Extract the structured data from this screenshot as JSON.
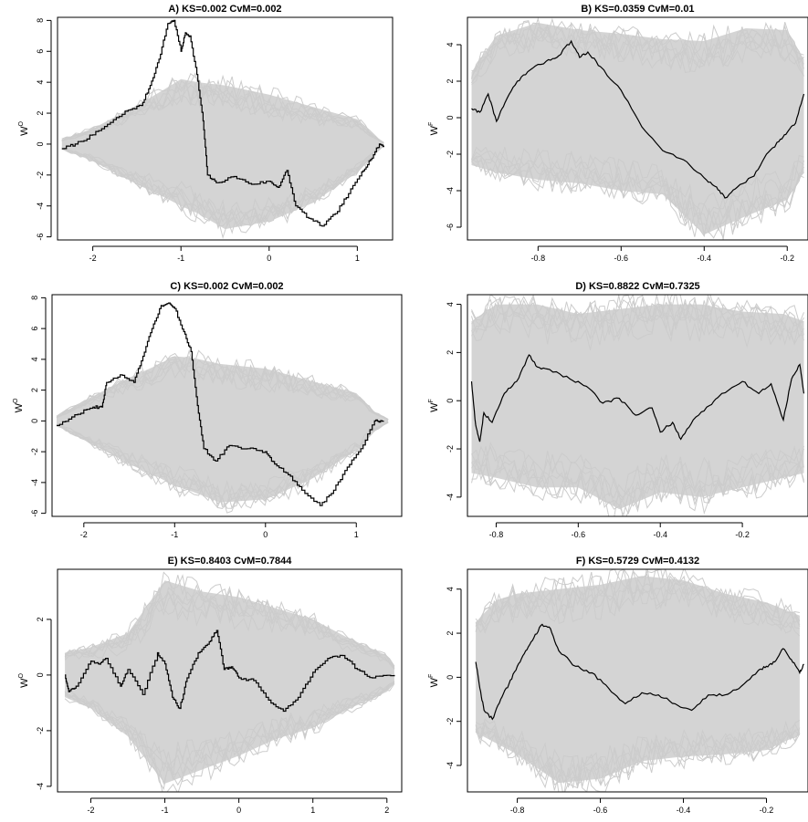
{
  "chart_data": [
    {
      "id": "A",
      "type": "line",
      "title": "A) KS=0.002 CvM=0.002",
      "ylabel": "W",
      "ylabel_sup": "O",
      "xlim": [
        -2.4,
        1.4
      ],
      "ylim": [
        -6.2,
        8.2
      ],
      "xticks": [
        -2,
        -1,
        0,
        1
      ],
      "yticks": [
        -6,
        -4,
        -2,
        0,
        2,
        4,
        6,
        8
      ],
      "xtick_labels": [
        "-2",
        "-1",
        "0",
        "1"
      ],
      "ytick_labels": [
        "-6",
        "-4",
        "-2",
        "0",
        "2",
        "4",
        "6",
        "8"
      ],
      "envelope": {
        "x": [
          -2.35,
          -2.0,
          -1.5,
          -1.2,
          -1.0,
          -0.8,
          -0.5,
          0.0,
          0.5,
          1.0,
          1.2,
          1.3
        ],
        "upper": [
          0.3,
          1.0,
          2.5,
          3.5,
          4.2,
          4.0,
          3.8,
          3.2,
          2.4,
          1.6,
          0.5,
          0.1
        ],
        "lower": [
          -0.3,
          -1.1,
          -2.6,
          -3.4,
          -4.0,
          -4.5,
          -5.5,
          -5.0,
          -3.8,
          -1.8,
          -0.6,
          -0.1
        ]
      },
      "series": [
        {
          "x": [
            -2.35,
            -2.2,
            -2.0,
            -1.8,
            -1.6,
            -1.45,
            -1.35,
            -1.25,
            -1.15,
            -1.08,
            -1.0,
            -0.95,
            -0.9,
            -0.82,
            -0.75,
            -0.7,
            -0.6,
            -0.4,
            -0.2,
            0.0,
            0.1,
            0.2,
            0.3,
            0.45,
            0.6,
            0.75,
            0.9,
            1.05,
            1.15,
            1.25,
            1.3
          ],
          "y": [
            -0.3,
            0.0,
            0.6,
            1.4,
            2.2,
            2.5,
            3.8,
            5.5,
            7.8,
            8.0,
            6.0,
            7.2,
            7.0,
            4.5,
            1.5,
            -2.0,
            -2.5,
            -2.1,
            -2.6,
            -2.4,
            -2.8,
            -1.7,
            -4.0,
            -4.8,
            -5.3,
            -4.5,
            -3.2,
            -1.8,
            -1.0,
            0.0,
            -0.1
          ],
          "step": true
        }
      ]
    },
    {
      "id": "B",
      "type": "line",
      "title": "B) KS=0.0359 CvM=0.01",
      "ylabel": "W",
      "ylabel_sup": "F",
      "xlim": [
        -0.97,
        -0.15
      ],
      "ylim": [
        -6.7,
        5.5
      ],
      "xticks": [
        -0.8,
        -0.6,
        -0.4,
        -0.2
      ],
      "yticks": [
        -6,
        -4,
        -2,
        0,
        2,
        4
      ],
      "xtick_labels": [
        "-0.8",
        "-0.6",
        "-0.4",
        "-0.2"
      ],
      "ytick_labels": [
        "-6",
        "-4",
        "-2",
        "0",
        "2",
        "4"
      ],
      "envelope": {
        "x": [
          -0.96,
          -0.9,
          -0.8,
          -0.7,
          -0.6,
          -0.5,
          -0.4,
          -0.3,
          -0.2,
          -0.16
        ],
        "upper": [
          2.5,
          4.5,
          5.2,
          4.8,
          4.6,
          4.3,
          4.2,
          4.9,
          4.8,
          3.2
        ],
        "lower": [
          -2.6,
          -3.0,
          -3.4,
          -3.6,
          -4.0,
          -4.2,
          -6.4,
          -5.4,
          -4.5,
          -3.0
        ]
      },
      "series": [
        {
          "x": [
            -0.96,
            -0.94,
            -0.92,
            -0.9,
            -0.88,
            -0.85,
            -0.82,
            -0.78,
            -0.75,
            -0.72,
            -0.7,
            -0.68,
            -0.65,
            -0.6,
            -0.55,
            -0.5,
            -0.45,
            -0.4,
            -0.37,
            -0.35,
            -0.32,
            -0.28,
            -0.25,
            -0.22,
            -0.2,
            -0.18,
            -0.16
          ],
          "y": [
            0.5,
            0.3,
            1.3,
            -0.2,
            0.8,
            2.0,
            2.6,
            3.1,
            3.4,
            4.2,
            3.3,
            3.6,
            2.8,
            1.5,
            -0.5,
            -1.8,
            -2.3,
            -3.3,
            -3.8,
            -4.4,
            -3.8,
            -3.2,
            -2.0,
            -1.3,
            -0.8,
            -0.3,
            1.3
          ]
        }
      ]
    },
    {
      "id": "C",
      "type": "line",
      "title": "C) KS=0.002 CvM=0.002",
      "ylabel": "W",
      "ylabel_sup": "O",
      "xlim": [
        -2.35,
        1.5
      ],
      "ylim": [
        -6.2,
        8.2
      ],
      "xticks": [
        -2,
        -1,
        0,
        1
      ],
      "yticks": [
        -6,
        -4,
        -2,
        0,
        2,
        4,
        6,
        8
      ],
      "xtick_labels": [
        "-2",
        "-1",
        "0",
        "1"
      ],
      "ytick_labels": [
        "-6",
        "-4",
        "-2",
        "0",
        "2",
        "4",
        "6",
        "8"
      ],
      "envelope": {
        "x": [
          -2.3,
          -2.0,
          -1.5,
          -1.2,
          -1.0,
          -0.8,
          -0.5,
          0.0,
          0.5,
          1.0,
          1.2,
          1.35
        ],
        "upper": [
          0.3,
          1.3,
          2.8,
          3.6,
          4.2,
          4.1,
          3.7,
          3.4,
          2.6,
          1.8,
          0.6,
          0.1
        ],
        "lower": [
          -0.3,
          -1.2,
          -2.8,
          -3.6,
          -4.2,
          -4.6,
          -5.3,
          -5.1,
          -3.8,
          -1.9,
          -0.6,
          -0.1
        ]
      },
      "series": [
        {
          "x": [
            -2.3,
            -2.1,
            -1.9,
            -1.8,
            -1.75,
            -1.6,
            -1.45,
            -1.35,
            -1.25,
            -1.15,
            -1.05,
            -1.0,
            -0.9,
            -0.82,
            -0.75,
            -0.68,
            -0.55,
            -0.4,
            -0.2,
            0.0,
            0.1,
            0.25,
            0.4,
            0.6,
            0.75,
            0.9,
            1.05,
            1.2,
            1.3
          ],
          "y": [
            -0.3,
            0.4,
            0.9,
            0.9,
            2.5,
            3.0,
            2.5,
            4.2,
            6.0,
            7.5,
            7.6,
            7.3,
            5.8,
            4.5,
            1.0,
            -1.8,
            -2.6,
            -1.6,
            -1.8,
            -2.0,
            -2.8,
            -3.5,
            -4.5,
            -5.5,
            -4.5,
            -3.0,
            -1.8,
            0.0,
            0.0
          ],
          "step": true
        }
      ]
    },
    {
      "id": "D",
      "type": "line",
      "title": "D) KS=0.8822 CvM=0.7325",
      "ylabel": "W",
      "ylabel_sup": "F",
      "xlim": [
        -0.87,
        -0.04
      ],
      "ylim": [
        -4.8,
        4.4
      ],
      "xticks": [
        -0.8,
        -0.6,
        -0.4,
        -0.2
      ],
      "yticks": [
        -4,
        -2,
        0,
        2,
        4
      ],
      "xtick_labels": [
        "-0.8",
        "-0.6",
        "-0.4",
        "-0.2"
      ],
      "ytick_labels": [
        "-4",
        "-2",
        "0",
        "2",
        "4"
      ],
      "envelope": {
        "x": [
          -0.86,
          -0.8,
          -0.7,
          -0.6,
          -0.5,
          -0.4,
          -0.3,
          -0.2,
          -0.1,
          -0.05
        ],
        "upper": [
          3.3,
          4.0,
          4.0,
          3.6,
          3.8,
          4.0,
          4.0,
          3.7,
          3.6,
          3.3
        ],
        "lower": [
          -3.0,
          -3.2,
          -3.6,
          -3.6,
          -4.5,
          -3.8,
          -4.0,
          -3.6,
          -3.2,
          -3.0
        ]
      },
      "series": [
        {
          "x": [
            -0.86,
            -0.85,
            -0.84,
            -0.83,
            -0.81,
            -0.78,
            -0.75,
            -0.72,
            -0.7,
            -0.67,
            -0.62,
            -0.58,
            -0.54,
            -0.5,
            -0.46,
            -0.42,
            -0.4,
            -0.37,
            -0.35,
            -0.32,
            -0.28,
            -0.25,
            -0.2,
            -0.16,
            -0.13,
            -0.1,
            -0.08,
            -0.06,
            -0.05
          ],
          "y": [
            0.8,
            -1.0,
            -1.7,
            -0.5,
            -0.9,
            0.3,
            0.8,
            1.9,
            1.4,
            1.3,
            0.9,
            0.6,
            -0.1,
            0.1,
            -0.6,
            -0.3,
            -1.3,
            -0.9,
            -1.6,
            -0.8,
            -0.2,
            0.3,
            0.8,
            0.3,
            0.7,
            -0.8,
            0.9,
            1.5,
            0.3
          ]
        }
      ]
    },
    {
      "id": "E",
      "type": "line",
      "title": "E) KS=0.8403 CvM=0.7844",
      "ylabel": "W",
      "ylabel_sup": "O",
      "xlim": [
        -2.45,
        2.2
      ],
      "ylim": [
        -4.2,
        3.8
      ],
      "xticks": [
        -2,
        -1,
        0,
        1,
        2
      ],
      "yticks": [
        -4,
        -2,
        0,
        2
      ],
      "xtick_labels": [
        "-2",
        "-1",
        "0",
        "1",
        "2"
      ],
      "ytick_labels": [
        "-4",
        "-2",
        "0",
        "2"
      ],
      "envelope": {
        "x": [
          -2.35,
          -2.0,
          -1.5,
          -1.0,
          -0.5,
          0.0,
          0.5,
          1.0,
          1.5,
          2.0,
          2.1
        ],
        "upper": [
          0.8,
          1.0,
          1.5,
          3.4,
          3.0,
          2.8,
          2.4,
          2.0,
          1.3,
          0.7,
          0.3
        ],
        "lower": [
          -0.8,
          -1.2,
          -2.2,
          -3.9,
          -3.4,
          -2.9,
          -2.3,
          -1.9,
          -1.2,
          -0.6,
          -0.3
        ]
      },
      "series": [
        {
          "x": [
            -2.35,
            -2.3,
            -2.2,
            -2.0,
            -1.9,
            -1.8,
            -1.6,
            -1.5,
            -1.3,
            -1.1,
            -1.0,
            -0.9,
            -0.8,
            -0.7,
            -0.55,
            -0.4,
            -0.3,
            -0.2,
            -0.1,
            0.0,
            0.2,
            0.4,
            0.6,
            0.8,
            1.0,
            1.2,
            1.4,
            1.6,
            1.8,
            2.1
          ],
          "y": [
            0.0,
            -0.6,
            -0.4,
            0.5,
            0.4,
            0.6,
            -0.4,
            0.2,
            -0.7,
            0.8,
            0.4,
            -0.8,
            -1.2,
            -0.1,
            0.8,
            1.2,
            1.6,
            0.2,
            0.3,
            -0.1,
            -0.2,
            -0.9,
            -1.3,
            -0.8,
            0.1,
            0.6,
            0.7,
            0.2,
            -0.1,
            0.0
          ],
          "step": true
        }
      ]
    },
    {
      "id": "F",
      "type": "line",
      "title": "F) KS=0.5729 CvM=0.4132",
      "ylabel": "W",
      "ylabel_sup": "F",
      "xlim": [
        -0.92,
        -0.1
      ],
      "ylim": [
        -5.2,
        4.9
      ],
      "xticks": [
        -0.8,
        -0.6,
        -0.4,
        -0.2
      ],
      "yticks": [
        -4,
        -2,
        0,
        2,
        4
      ],
      "xtick_labels": [
        "-0.8",
        "-0.6",
        "-0.4",
        "-0.2"
      ],
      "ytick_labels": [
        "-4",
        "-2",
        "0",
        "2",
        "4"
      ],
      "envelope": {
        "x": [
          -0.9,
          -0.85,
          -0.8,
          -0.7,
          -0.6,
          -0.5,
          -0.4,
          -0.3,
          -0.2,
          -0.12
        ],
        "upper": [
          2.5,
          3.5,
          3.8,
          4.0,
          4.2,
          4.6,
          4.4,
          3.8,
          3.4,
          2.8
        ],
        "lower": [
          -2.5,
          -3.0,
          -3.5,
          -4.8,
          -4.6,
          -3.8,
          -3.6,
          -3.5,
          -3.3,
          -2.6
        ]
      },
      "series": [
        {
          "x": [
            -0.9,
            -0.89,
            -0.88,
            -0.86,
            -0.84,
            -0.82,
            -0.8,
            -0.78,
            -0.76,
            -0.74,
            -0.72,
            -0.7,
            -0.66,
            -0.62,
            -0.58,
            -0.54,
            -0.5,
            -0.46,
            -0.42,
            -0.38,
            -0.34,
            -0.3,
            -0.26,
            -0.22,
            -0.2,
            -0.18,
            -0.16,
            -0.14,
            -0.12,
            -0.11
          ],
          "y": [
            0.7,
            -0.5,
            -1.5,
            -1.9,
            -1.0,
            -0.3,
            0.5,
            1.2,
            1.8,
            2.4,
            2.2,
            1.2,
            0.5,
            0.2,
            -0.5,
            -1.2,
            -0.7,
            -0.8,
            -1.2,
            -1.5,
            -0.8,
            -0.8,
            -0.4,
            0.3,
            0.5,
            0.7,
            1.3,
            0.8,
            0.2,
            0.6
          ]
        }
      ]
    }
  ]
}
